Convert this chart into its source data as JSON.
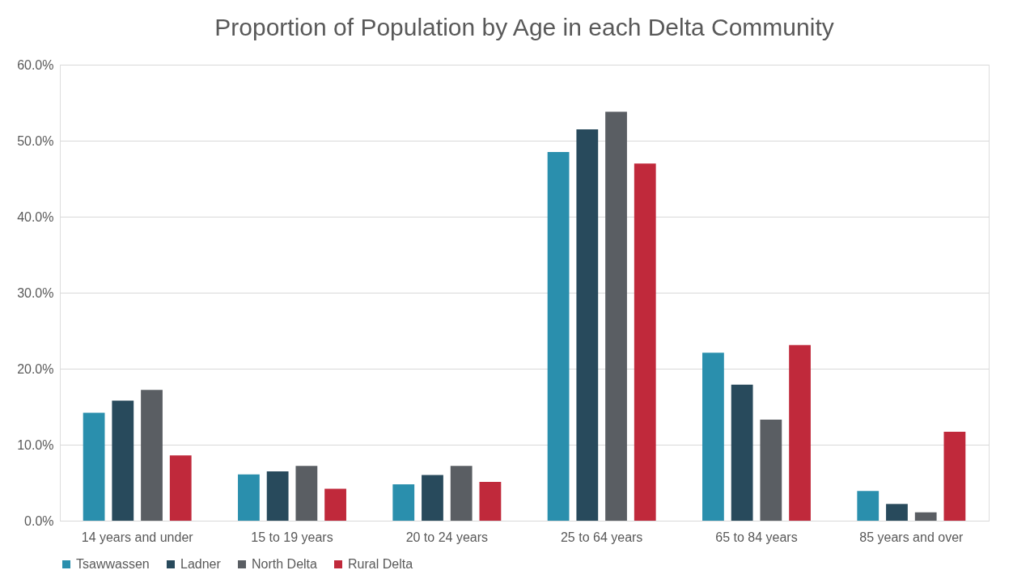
{
  "chart_data": {
    "type": "bar",
    "title": "Proportion of Population by Age in each Delta Community",
    "categories": [
      "14 years and under",
      "15 to 19 years",
      "20 to 24 years",
      "25 to 64 years",
      "65 to 84 years",
      "85 years and over"
    ],
    "series": [
      {
        "name": "Tsawwassen",
        "color": "#2a8fad",
        "values": [
          14.2,
          6.1,
          4.8,
          48.5,
          22.1,
          3.9
        ]
      },
      {
        "name": "Ladner",
        "color": "#284a5c",
        "values": [
          15.8,
          6.5,
          6.0,
          51.5,
          17.9,
          2.2
        ]
      },
      {
        "name": "North Delta",
        "color": "#5a5e63",
        "values": [
          17.2,
          7.2,
          7.2,
          53.8,
          13.3,
          1.1
        ]
      },
      {
        "name": "Rural Delta",
        "color": "#c0293b",
        "values": [
          8.6,
          4.2,
          5.1,
          47.0,
          23.1,
          11.7
        ]
      }
    ],
    "ylim": [
      0,
      60
    ],
    "yticks": [
      {
        "value": 0,
        "label": "0.0%"
      },
      {
        "value": 10,
        "label": "10.0%"
      },
      {
        "value": 20,
        "label": "20.0%"
      },
      {
        "value": 30,
        "label": "30.0%"
      },
      {
        "value": 40,
        "label": "40.0%"
      },
      {
        "value": 50,
        "label": "50.0%"
      },
      {
        "value": 60,
        "label": "60.0%"
      }
    ],
    "grid": "y",
    "legend": "bottom"
  }
}
